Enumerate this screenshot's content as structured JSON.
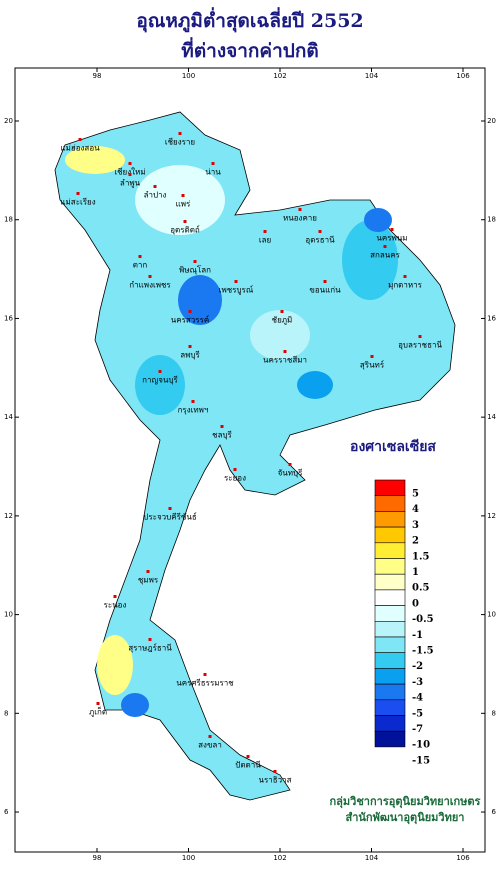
{
  "title": [
    "อุณหภูมิต่ำสุดเฉลี่ยปี 2552",
    "ที่ต่างจากค่าปกติ"
  ],
  "lon_ticks": [
    98,
    100,
    102,
    104,
    106
  ],
  "lat_ticks": [
    6,
    8,
    10,
    12,
    14,
    16,
    18,
    20
  ],
  "legend": {
    "title": "องศาเซลเซียส",
    "labels": [
      "5",
      "4",
      "3",
      "2",
      "1.5",
      "1",
      "0.5",
      "0",
      "-0.5",
      "-1",
      "-1.5",
      "-2",
      "-3",
      "-4",
      "-5",
      "-7",
      "-10",
      "-15"
    ],
    "colors": [
      "#ff0000",
      "#ff6a00",
      "#ff9a00",
      "#ffc800",
      "#ffee33",
      "#ffff88",
      "#ffffc8",
      "#ffffff",
      "#e0ffff",
      "#b8f4fa",
      "#7fe6f5",
      "#33ccf0",
      "#0aa0f0",
      "#1a78f0",
      "#1a4ef0",
      "#0a2ad0",
      "#00129a"
    ]
  },
  "places": [
    "เชียงราย",
    "แม่ฮ่องสอน",
    "เชียงใหม่",
    "ลำพูน",
    "ลำปาง",
    "น่าน",
    "แพร่",
    "แม่สะเรียง",
    "อุตรดิตถ์",
    "ตาก",
    "หนองคาย",
    "อุดรธานี",
    "นครพนม",
    "สกลนคร",
    "มุกดาหาร",
    "เลย",
    "พิษณุโลก",
    "เพชรบูรณ์",
    "ขอนแก่น",
    "กำแพงเพชร",
    "ชัยภูมิ",
    "อุบลราชธานี",
    "นครสวรรค์",
    "ลพบุรี",
    "นครราชสีมา",
    "สุรินทร์",
    "กาญจนบุรี",
    "กรุงเทพฯ",
    "ชลบุรี",
    "ระยอง",
    "จันทบุรี",
    "ประจวบคีรีขันธ์",
    "ชุมพร",
    "ระนอง",
    "สุราษฎร์ธานี",
    "นครศรีธรรมราช",
    "ภูเก็ต",
    "สงขลา",
    "ปัตตานี",
    "นราธิวาส"
  ],
  "credits": [
    "กลุ่มวิชาการอุตุนิยมวิทยาเกษตร",
    "สำนักพัฒนาอุตุนิยมวิทยา"
  ]
}
